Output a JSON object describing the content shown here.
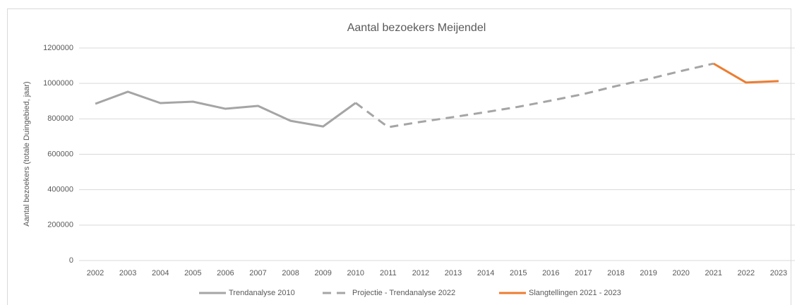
{
  "chart_data": {
    "type": "line",
    "title": "Aantal bezoekers Meijendel",
    "y_label": "Aantal bezoekers (totale Duingebied, jaar)",
    "categories": [
      "2002",
      "2003",
      "2004",
      "2005",
      "2006",
      "2007",
      "2008",
      "2009",
      "2010",
      "2011",
      "2012",
      "2013",
      "2014",
      "2015",
      "2016",
      "2017",
      "2018",
      "2019",
      "2020",
      "2021",
      "2022",
      "2023"
    ],
    "series": [
      {
        "name": "Trendanalyse 2010",
        "color": "#a5a5a5",
        "style": "solid",
        "values": [
          885000,
          953000,
          889000,
          897000,
          857000,
          873000,
          789000,
          757000,
          890000,
          null,
          null,
          null,
          null,
          null,
          null,
          null,
          null,
          null,
          null,
          null,
          null,
          null
        ]
      },
      {
        "name": "Projectie - Trendanalyse 2022",
        "color": "#a5a5a5",
        "style": "dashed",
        "values": [
          null,
          null,
          null,
          null,
          null,
          null,
          null,
          null,
          890000,
          753000,
          783000,
          810000,
          838000,
          868000,
          903000,
          940000,
          985000,
          1025000,
          1070000,
          1112000,
          null,
          null
        ]
      },
      {
        "name": "Slangtellingen 2021 - 2023",
        "color": "#ed7d31",
        "style": "solid",
        "values": [
          null,
          null,
          null,
          null,
          null,
          null,
          null,
          null,
          null,
          null,
          null,
          null,
          null,
          null,
          null,
          null,
          null,
          null,
          null,
          1112000,
          1005000,
          1013000
        ]
      }
    ],
    "ylim": [
      0,
      1200000
    ],
    "yticks": [
      0,
      200000,
      400000,
      600000,
      800000,
      1000000,
      1200000
    ],
    "grid": true,
    "legend": "bottom"
  }
}
